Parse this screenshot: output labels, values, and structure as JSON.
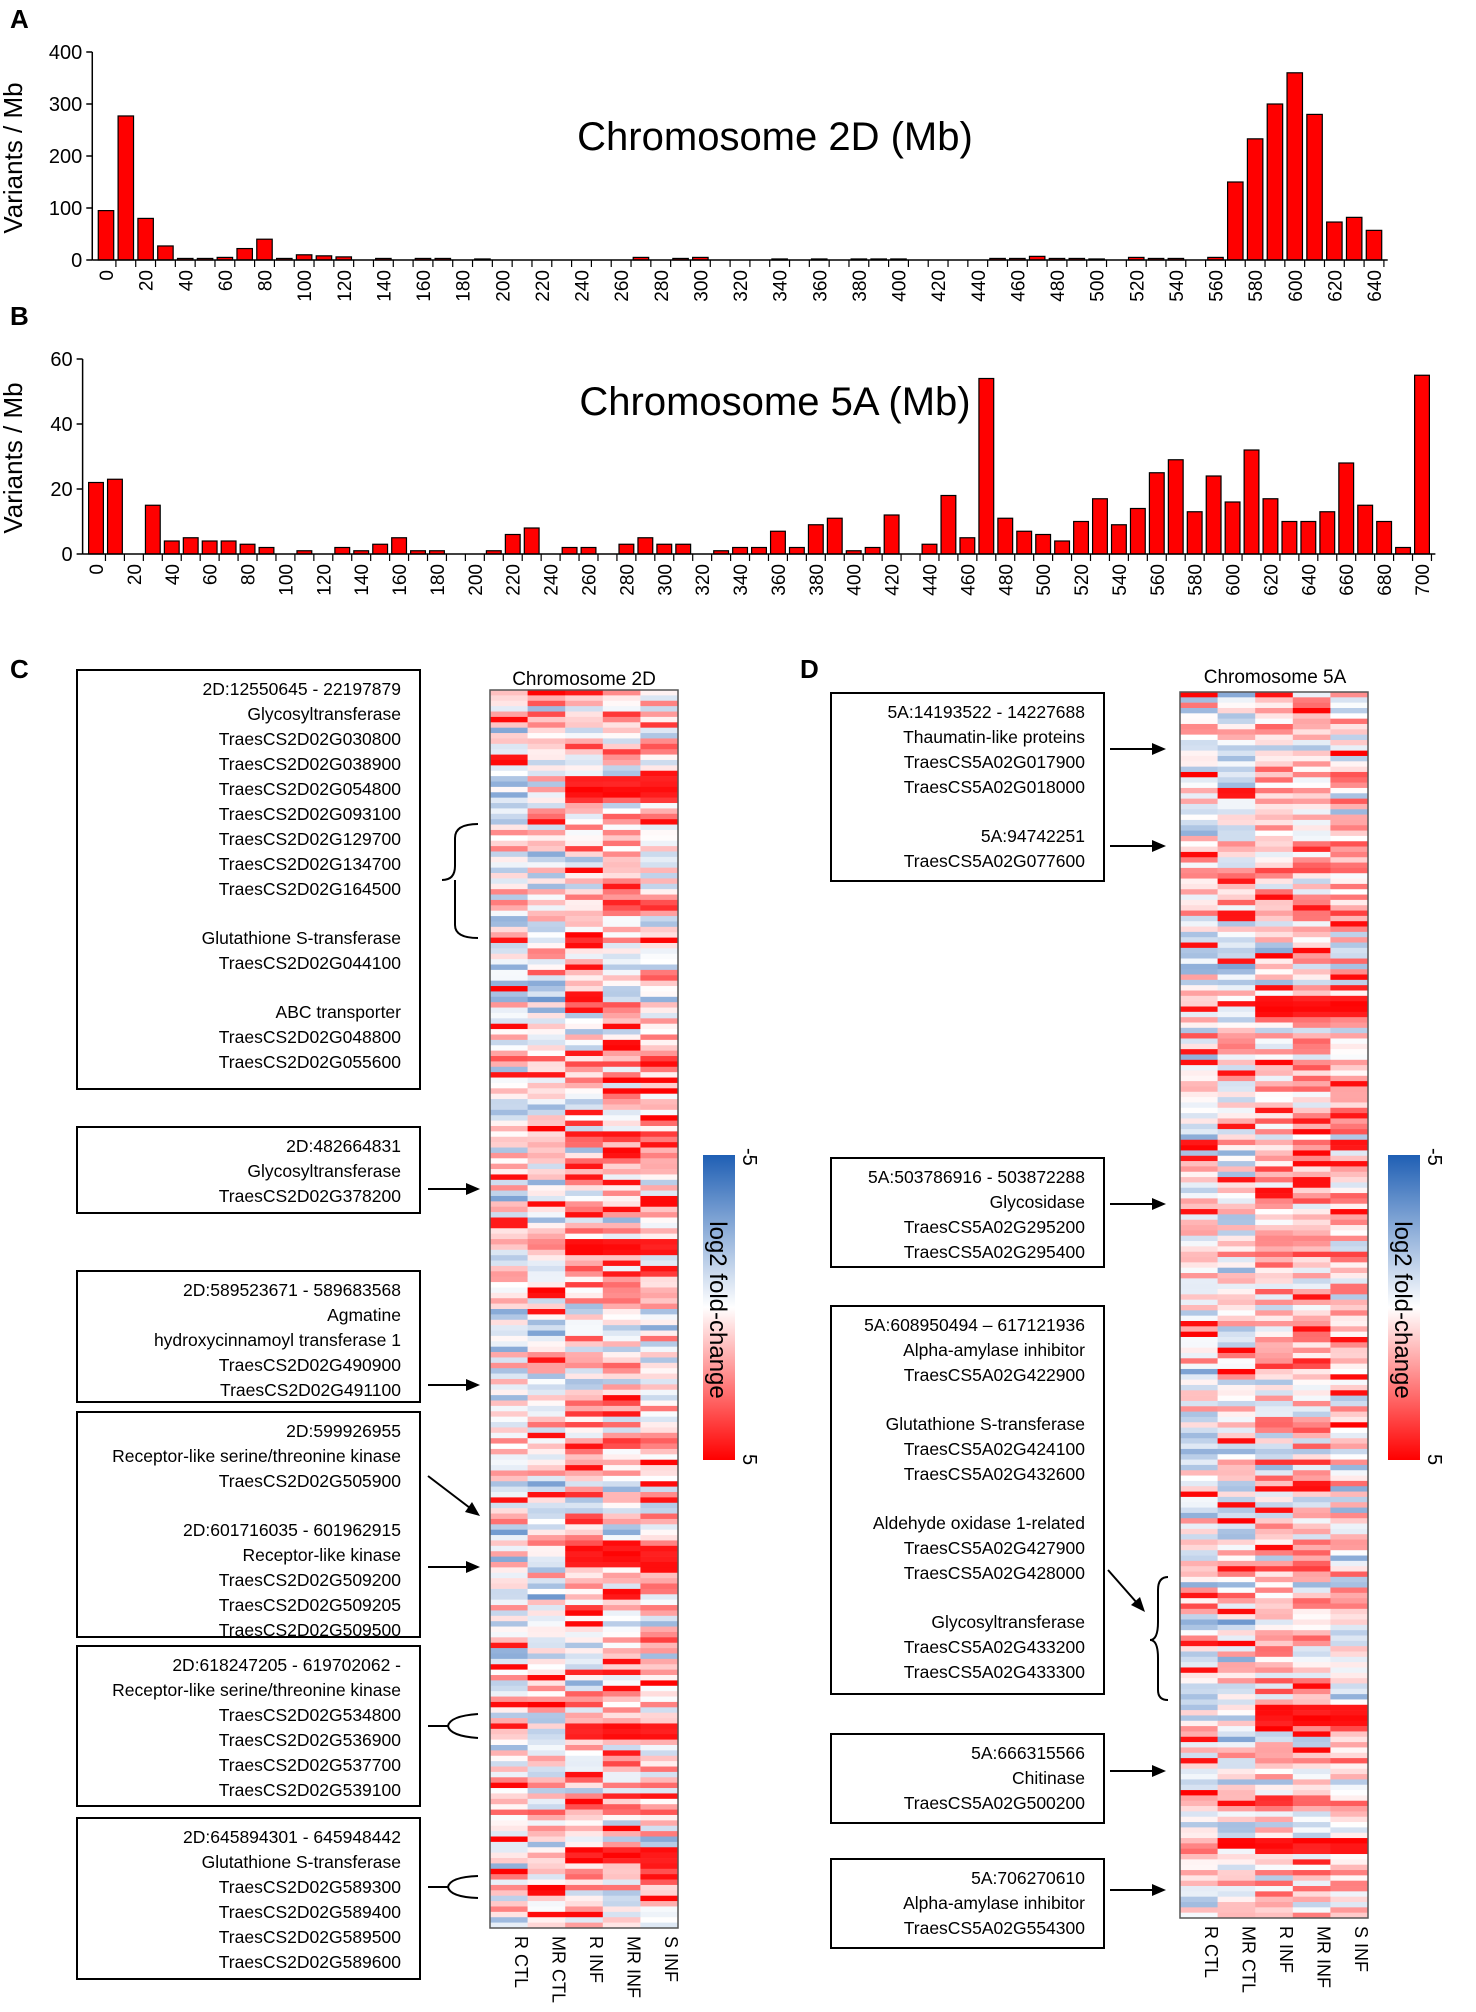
{
  "panels": {
    "A": "A",
    "B": "B",
    "C": "C",
    "D": "D"
  },
  "chart_data": [
    {
      "type": "bar",
      "panel": "A",
      "title": "Chromosome 2D (Mb)",
      "ylabel": "Variants / Mb",
      "xlabel": "",
      "ylim": [
        0,
        400
      ],
      "yticks": [
        0,
        100,
        200,
        300,
        400
      ],
      "xtick_labels": [
        "0",
        "20",
        "40",
        "60",
        "80",
        "100",
        "120",
        "140",
        "160",
        "180",
        "200",
        "220",
        "240",
        "260",
        "280",
        "300",
        "320",
        "340",
        "360",
        "380",
        "400",
        "420",
        "440",
        "460",
        "480",
        "500",
        "520",
        "540",
        "560",
        "580",
        "600",
        "620",
        "640"
      ],
      "x": [
        0,
        10,
        20,
        30,
        40,
        50,
        60,
        70,
        80,
        90,
        100,
        110,
        120,
        130,
        140,
        150,
        160,
        170,
        180,
        190,
        200,
        210,
        220,
        230,
        240,
        250,
        260,
        270,
        280,
        290,
        300,
        310,
        320,
        330,
        340,
        350,
        360,
        370,
        380,
        390,
        400,
        410,
        420,
        430,
        440,
        450,
        460,
        470,
        480,
        490,
        500,
        510,
        520,
        530,
        540,
        550,
        560,
        570,
        580,
        590,
        600,
        610,
        620,
        630,
        640
      ],
      "values": [
        95,
        277,
        80,
        27,
        3,
        3,
        5,
        22,
        40,
        3,
        10,
        8,
        6,
        0,
        3,
        0,
        3,
        3,
        0,
        2,
        0,
        0,
        0,
        0,
        0,
        0,
        0,
        5,
        0,
        3,
        5,
        0,
        0,
        0,
        2,
        0,
        2,
        0,
        2,
        2,
        2,
        0,
        0,
        0,
        0,
        3,
        3,
        7,
        3,
        3,
        2,
        0,
        5,
        3,
        3,
        0,
        5,
        150,
        233,
        300,
        360,
        280,
        73,
        82,
        57
      ]
    },
    {
      "type": "bar",
      "panel": "B",
      "title": "Chromosome 5A (Mb)",
      "ylabel": "Variants / Mb",
      "xlabel": "",
      "ylim": [
        0,
        60
      ],
      "yticks": [
        0,
        20,
        40,
        60
      ],
      "xtick_labels": [
        "0",
        "20",
        "40",
        "60",
        "80",
        "100",
        "120",
        "140",
        "160",
        "180",
        "200",
        "220",
        "240",
        "260",
        "280",
        "300",
        "320",
        "340",
        "360",
        "380",
        "400",
        "420",
        "440",
        "460",
        "480",
        "500",
        "520",
        "540",
        "560",
        "580",
        "600",
        "620",
        "640",
        "660",
        "680",
        "700"
      ],
      "x": [
        0,
        10,
        20,
        30,
        40,
        50,
        60,
        70,
        80,
        90,
        100,
        110,
        120,
        130,
        140,
        150,
        160,
        170,
        180,
        190,
        200,
        210,
        220,
        230,
        240,
        250,
        260,
        270,
        280,
        290,
        300,
        310,
        320,
        330,
        340,
        350,
        360,
        370,
        380,
        390,
        400,
        410,
        420,
        430,
        440,
        450,
        460,
        470,
        480,
        490,
        500,
        510,
        520,
        530,
        540,
        550,
        560,
        570,
        580,
        590,
        600,
        610,
        620,
        630,
        640,
        650,
        660,
        670,
        680,
        690,
        700
      ],
      "values": [
        22,
        23,
        0,
        15,
        4,
        5,
        4,
        4,
        3,
        2,
        0,
        1,
        0,
        2,
        1,
        3,
        5,
        1,
        1,
        0,
        0,
        1,
        6,
        8,
        0,
        2,
        2,
        0,
        3,
        5,
        3,
        3,
        0,
        1,
        2,
        2,
        7,
        2,
        9,
        11,
        1,
        2,
        12,
        0,
        3,
        18,
        5,
        54,
        11,
        7,
        6,
        4,
        10,
        17,
        9,
        14,
        25,
        29,
        13,
        24,
        16,
        32,
        17,
        10,
        10,
        13,
        28,
        15,
        10,
        2,
        55
      ]
    },
    {
      "type": "heatmap",
      "panel": "C",
      "title": "Chromosome 2D",
      "columns": [
        "R CTL",
        "MR CTL",
        "R INF",
        "MR INF",
        "S INF"
      ],
      "colorbar": {
        "label": "log2 fold-change",
        "min": "-5",
        "max": "5",
        "min_color": "#1f5fb4",
        "mid_color": "#ffffff",
        "max_color": "#ff0000"
      }
    },
    {
      "type": "heatmap",
      "panel": "D",
      "title": "Chromosome 5A",
      "columns": [
        "R CTL",
        "MR CTL",
        "R INF",
        "MR INF",
        "S INF"
      ],
      "colorbar": {
        "label": "log2 fold-change",
        "min": "-5",
        "max": "5",
        "min_color": "#1f5fb4",
        "mid_color": "#ffffff",
        "max_color": "#ff0000"
      }
    }
  ],
  "annotations_2D": [
    {
      "lines": [
        "2D:12550645 - 22197879",
        "Glycosyltransferase",
        "TraesCS2D02G030800",
        "TraesCS2D02G038900",
        "TraesCS2D02G054800",
        "TraesCS2D02G093100",
        "TraesCS2D02G129700",
        "TraesCS2D02G134700",
        "TraesCS2D02G164500",
        "",
        "Glutathione S-transferase",
        "TraesCS2D02G044100",
        "",
        "ABC transporter",
        "TraesCS2D02G048800",
        "TraesCS2D02G055600"
      ]
    },
    {
      "lines": [
        "2D:482664831",
        "Glycosyltransferase",
        "TraesCS2D02G378200"
      ]
    },
    {
      "lines": [
        "2D:589523671 - 589683568",
        "Agmatine",
        "hydroxycinnamoyl transferase 1",
        "TraesCS2D02G490900",
        "TraesCS2D02G491100"
      ]
    },
    {
      "lines": [
        "2D:599926955",
        "Receptor-like serine/threonine kinase",
        "TraesCS2D02G505900",
        "",
        "2D:601716035 - 601962915",
        "Receptor-like kinase",
        "TraesCS2D02G509200",
        "TraesCS2D02G509205",
        "TraesCS2D02G509500"
      ]
    },
    {
      "lines": [
        "2D:618247205 - 619702062 -",
        "Receptor-like serine/threonine kinase",
        "TraesCS2D02G534800",
        "TraesCS2D02G536900",
        "TraesCS2D02G537700",
        "TraesCS2D02G539100"
      ]
    },
    {
      "lines": [
        "2D:645894301 - 645948442",
        "Glutathione S-transferase",
        "TraesCS2D02G589300",
        "TraesCS2D02G589400",
        "TraesCS2D02G589500",
        "TraesCS2D02G589600"
      ]
    }
  ],
  "annotations_5A": [
    {
      "lines": [
        "5A:14193522 - 14227688",
        "Thaumatin-like proteins",
        "TraesCS5A02G017900",
        "TraesCS5A02G018000",
        "",
        "5A:94742251",
        "TraesCS5A02G077600"
      ]
    },
    {
      "lines": [
        "5A:503786916 - 503872288",
        "Glycosidase",
        "TraesCS5A02G295200",
        "TraesCS5A02G295400"
      ]
    },
    {
      "lines": [
        "5A:608950494 – 617121936",
        "Alpha-amylase inhibitor",
        "TraesCS5A02G422900",
        "",
        "Glutathione S-transferase",
        "TraesCS5A02G424100",
        "TraesCS5A02G432600",
        "",
        "Aldehyde oxidase 1-related",
        "TraesCS5A02G427900",
        "TraesCS5A02G428000",
        "",
        "Glycosyltransferase",
        "TraesCS5A02G433200",
        "TraesCS5A02G433300"
      ]
    },
    {
      "lines": [
        "5A:666315566",
        "Chitinase",
        "TraesCS5A02G500200"
      ]
    },
    {
      "lines": [
        "5A:706270610",
        "Alpha-amylase inhibitor",
        "TraesCS5A02G554300"
      ]
    }
  ]
}
